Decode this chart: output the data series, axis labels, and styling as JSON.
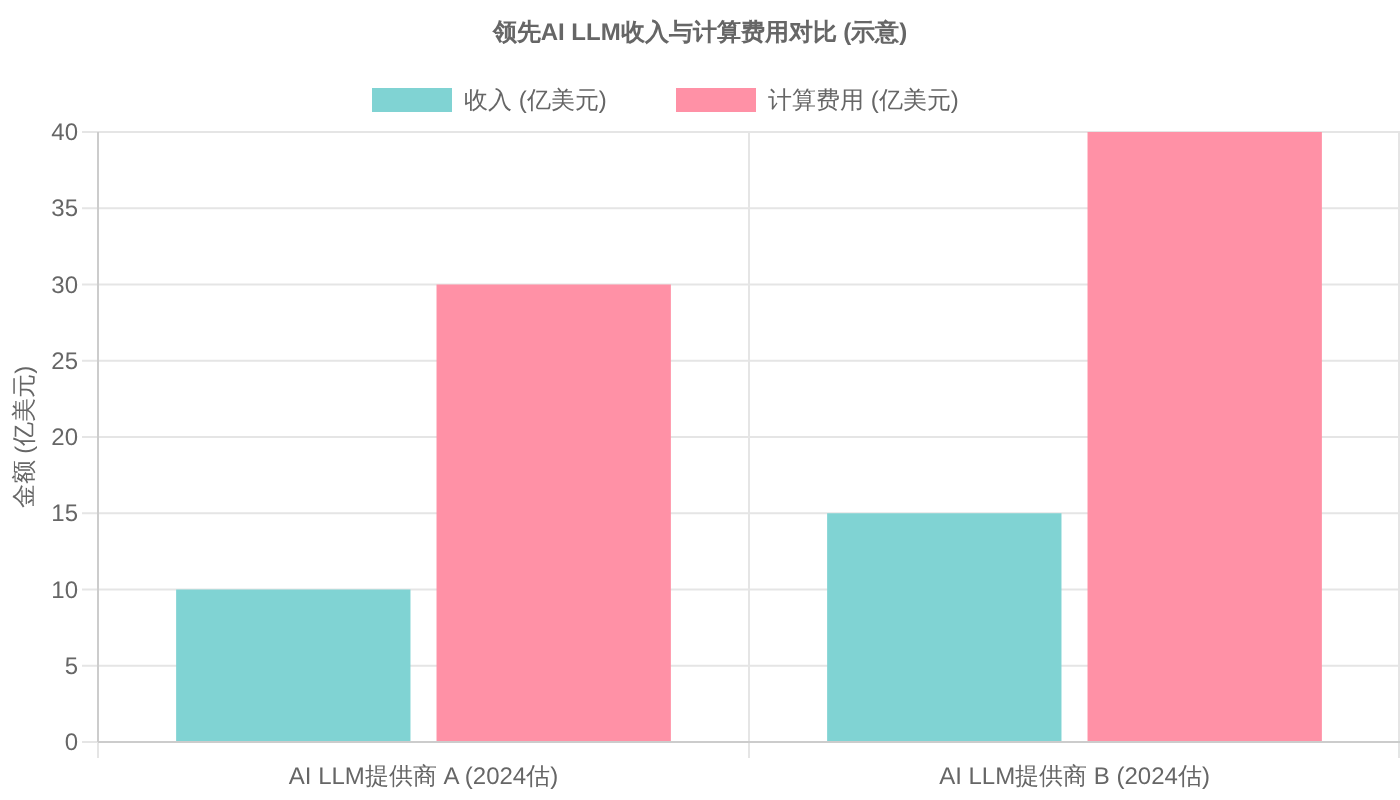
{
  "chart_data": {
    "type": "bar",
    "title": "领先AI LLM收入与计算费用对比 (示意)",
    "ylabel": "金额 (亿美元)",
    "categories": [
      "AI LLM提供商 A (2024估)",
      "AI LLM提供商 B (2024估)"
    ],
    "series": [
      {
        "name": "收入 (亿美元)",
        "color": "#80d3d3",
        "values": [
          10,
          15
        ]
      },
      {
        "name": "计算费用 (亿美元)",
        "color": "#ff91a6",
        "values": [
          30,
          40
        ]
      }
    ],
    "ylim": [
      0,
      40
    ],
    "yticks": [
      0,
      5,
      10,
      15,
      20,
      25,
      30,
      35,
      40
    ],
    "grid": true,
    "legend": "top"
  }
}
